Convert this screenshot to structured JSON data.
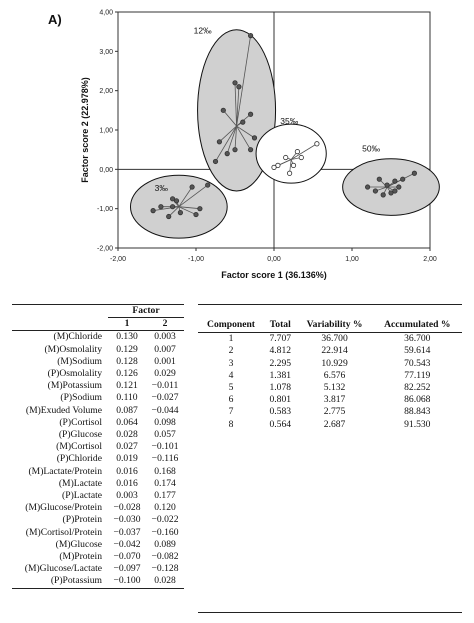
{
  "panel_label": "A)",
  "chart_data": {
    "type": "scatter",
    "xlabel": "Factor score 1 (36.136%)",
    "ylabel": "Factor score 2 (22.978%)",
    "xlim": [
      -2.0,
      2.0
    ],
    "ylim": [
      -2.0,
      4.0
    ],
    "xticks": [
      "-2,00",
      "-1,00",
      "0,00",
      "1,00",
      "2,00"
    ],
    "yticks": [
      "-2,00",
      "-1,00",
      "0,00",
      "1,00",
      "2,00",
      "3,00",
      "4,00"
    ],
    "groups": [
      {
        "label": "3‰",
        "fill": "#d0d0d0",
        "marker": "filled",
        "label_at": [
          -1.53,
          -0.55
        ],
        "centroid": [
          -1.22,
          -0.95
        ],
        "ellipse": {
          "cx": -1.22,
          "cy": -0.95,
          "rx": 0.62,
          "ry": 0.8
        },
        "points": [
          [
            -0.85,
            -0.4
          ],
          [
            -1.05,
            -0.45
          ],
          [
            -1.3,
            -0.75
          ],
          [
            -1.25,
            -0.8
          ],
          [
            -1.45,
            -0.95
          ],
          [
            -1.55,
            -1.05
          ],
          [
            -1.35,
            -1.2
          ],
          [
            -1.2,
            -1.1
          ],
          [
            -1.0,
            -1.15
          ],
          [
            -0.95,
            -1.0
          ],
          [
            -1.3,
            -0.95
          ]
        ]
      },
      {
        "label": "12‰",
        "fill": "#d0d0d0",
        "marker": "filled",
        "label_at": [
          -1.03,
          3.45
        ],
        "centroid": [
          -0.48,
          1.1
        ],
        "ellipse": {
          "cx": -0.48,
          "cy": 1.5,
          "rx": 0.5,
          "ry": 2.05
        },
        "points": [
          [
            -0.3,
            3.4
          ],
          [
            -0.5,
            2.2
          ],
          [
            -0.45,
            2.1
          ],
          [
            -0.65,
            1.5
          ],
          [
            -0.3,
            1.4
          ],
          [
            -0.4,
            1.2
          ],
          [
            -0.7,
            0.7
          ],
          [
            -0.25,
            0.8
          ],
          [
            -0.3,
            0.5
          ],
          [
            -0.5,
            0.5
          ],
          [
            -0.75,
            0.2
          ],
          [
            -0.6,
            0.4
          ]
        ]
      },
      {
        "label": "35‰",
        "fill": "#ffffff",
        "marker": "open",
        "label_at": [
          0.08,
          1.15
        ],
        "centroid": [
          0.22,
          0.25
        ],
        "ellipse": {
          "cx": 0.22,
          "cy": 0.4,
          "rx": 0.45,
          "ry": 0.75
        },
        "points": [
          [
            0.55,
            0.65
          ],
          [
            0.3,
            0.45
          ],
          [
            0.15,
            0.3
          ],
          [
            0.05,
            0.1
          ],
          [
            0.2,
            -0.1
          ],
          [
            0.35,
            0.3
          ],
          [
            0.0,
            0.05
          ],
          [
            0.25,
            0.1
          ]
        ]
      },
      {
        "label": "50‰",
        "fill": "#d0d0d0",
        "marker": "filled",
        "label_at": [
          1.13,
          0.45
        ],
        "centroid": [
          1.45,
          -0.45
        ],
        "ellipse": {
          "cx": 1.5,
          "cy": -0.45,
          "rx": 0.62,
          "ry": 0.72
        },
        "points": [
          [
            1.8,
            -0.1
          ],
          [
            1.65,
            -0.25
          ],
          [
            1.55,
            -0.3
          ],
          [
            1.35,
            -0.25
          ],
          [
            1.45,
            -0.4
          ],
          [
            1.2,
            -0.45
          ],
          [
            1.5,
            -0.6
          ],
          [
            1.4,
            -0.65
          ],
          [
            1.55,
            -0.55
          ],
          [
            1.6,
            -0.45
          ],
          [
            1.3,
            -0.55
          ]
        ]
      }
    ]
  },
  "loadings_table": {
    "header_factor": "Factor",
    "columns": [
      "1",
      "2"
    ],
    "rows": [
      [
        "(M)Chloride",
        "0.130",
        "0.003"
      ],
      [
        "(M)Osmolality",
        "0.129",
        "0.007"
      ],
      [
        "(M)Sodium",
        "0.128",
        "0.001"
      ],
      [
        "(P)Osmolality",
        "0.126",
        "0.029"
      ],
      [
        "(M)Potassium",
        "0.121",
        "−0.011"
      ],
      [
        "(P)Sodium",
        "0.110",
        "−0.027"
      ],
      [
        "(M)Exuded Volume",
        "0.087",
        "−0.044"
      ],
      [
        "(P)Cortisol",
        "0.064",
        "0.098"
      ],
      [
        "(P)Glucose",
        "0.028",
        "0.057"
      ],
      [
        "(M)Cortisol",
        "0.027",
        "−0.101"
      ],
      [
        "(P)Chloride",
        "0.019",
        "−0.116"
      ],
      [
        "(M)Lactate/Protein",
        "0.016",
        "0.168"
      ],
      [
        "(M)Lactate",
        "0.016",
        "0.174"
      ],
      [
        "(P)Lactate",
        "0.003",
        "0.177"
      ],
      [
        "(M)Glucose/Protein",
        "−0.028",
        "0.120"
      ],
      [
        "(P)Protein",
        "−0.030",
        "−0.022"
      ],
      [
        "(M)Cortisol/Protein",
        "−0.037",
        "−0.160"
      ],
      [
        "(M)Glucose",
        "−0.042",
        "0.089"
      ],
      [
        "(M)Protein",
        "−0.070",
        "−0.082"
      ],
      [
        "(M)Glucose/Lactate",
        "−0.097",
        "−0.128"
      ],
      [
        "(P)Potassium",
        "−0.100",
        "0.028"
      ]
    ]
  },
  "variance_table": {
    "columns": [
      "Component",
      "Total",
      "Variability %",
      "Accumulated %"
    ],
    "rows": [
      [
        "1",
        "7.707",
        "36.700",
        "36.700"
      ],
      [
        "2",
        "4.812",
        "22.914",
        "59.614"
      ],
      [
        "3",
        "2.295",
        "10.929",
        "70.543"
      ],
      [
        "4",
        "1.381",
        "6.576",
        "77.119"
      ],
      [
        "5",
        "1.078",
        "5.132",
        "82.252"
      ],
      [
        "6",
        "0.801",
        "3.817",
        "86.068"
      ],
      [
        "7",
        "0.583",
        "2.775",
        "88.843"
      ],
      [
        "8",
        "0.564",
        "2.687",
        "91.530"
      ]
    ]
  }
}
